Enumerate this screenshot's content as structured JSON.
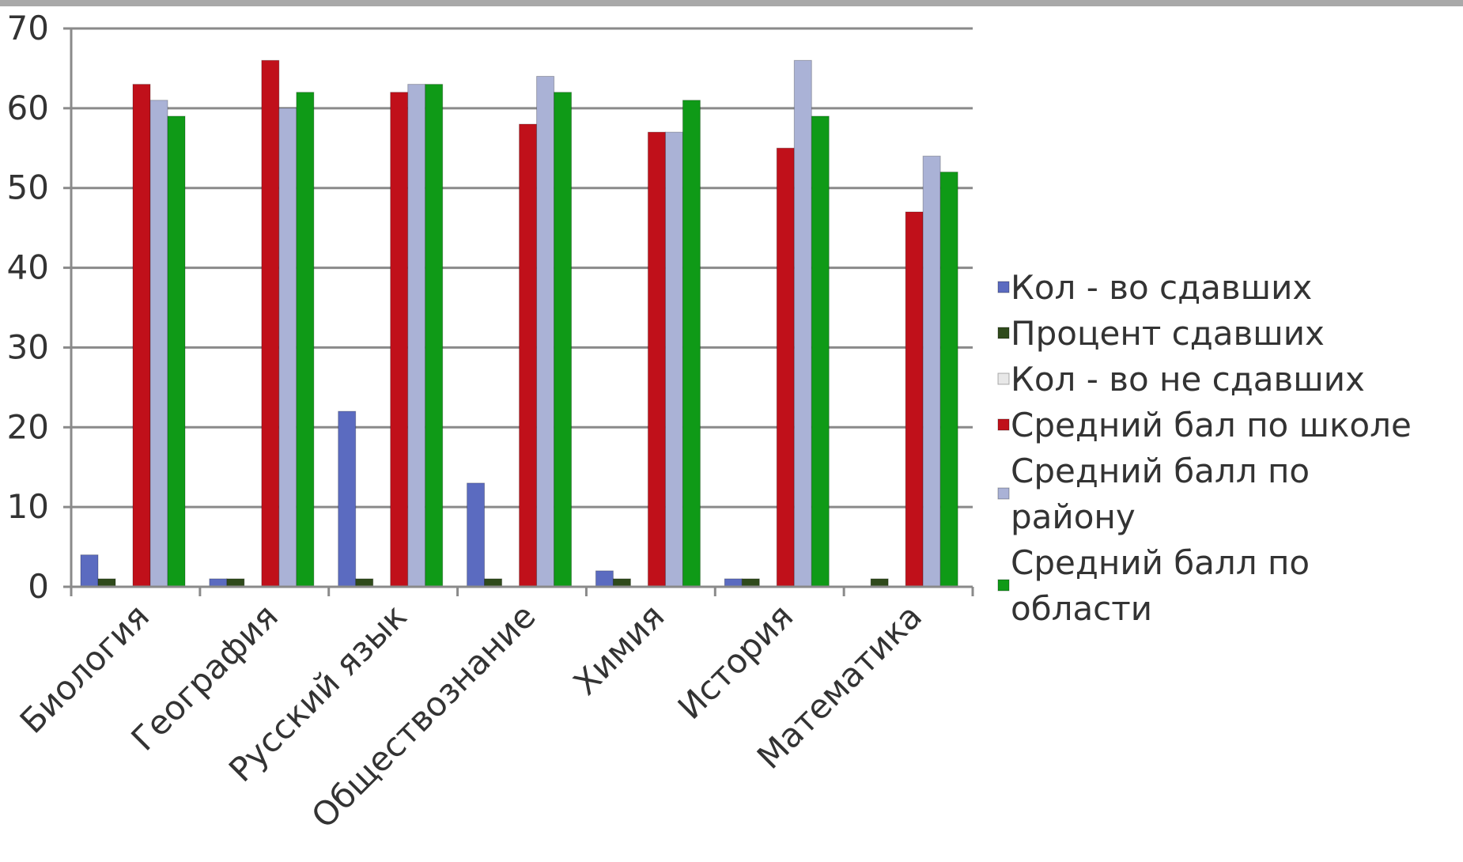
{
  "chart_data": {
    "type": "bar",
    "title": "",
    "xlabel": "",
    "ylabel": "",
    "ylim": [
      0,
      70
    ],
    "yticks": [
      "0",
      "10",
      "20",
      "30",
      "40",
      "50",
      "60",
      "70"
    ],
    "grid": true,
    "legend_position": "right",
    "categories": [
      "Биология",
      "География",
      "Русский язык",
      "Обществознание",
      "Химия",
      "История",
      "Математика"
    ],
    "series": [
      {
        "name": "Кол - во сдавших",
        "color": "#5b6bc0",
        "values": [
          4,
          1,
          22,
          13,
          2,
          1,
          0
        ]
      },
      {
        "name": "Процент сдавших",
        "color": "#2f4a1b",
        "values": [
          1,
          1,
          1,
          1,
          1,
          1,
          1
        ]
      },
      {
        "name": "Кол - во не сдавших",
        "color": "#e8e8e8",
        "values": [
          0,
          0,
          0,
          0,
          0,
          0,
          0
        ]
      },
      {
        "name": "Средний бал по школе",
        "color": "#c0101a",
        "values": [
          63,
          66,
          62,
          58,
          57,
          55,
          47
        ]
      },
      {
        "name": "Средний балл по району",
        "color": "#aab2d6",
        "values": [
          61,
          60,
          63,
          64,
          57,
          66,
          54
        ]
      },
      {
        "name": "Средний балл по области",
        "color": "#0f9a17",
        "values": [
          59,
          62,
          63,
          62,
          61,
          59,
          52
        ]
      }
    ]
  }
}
